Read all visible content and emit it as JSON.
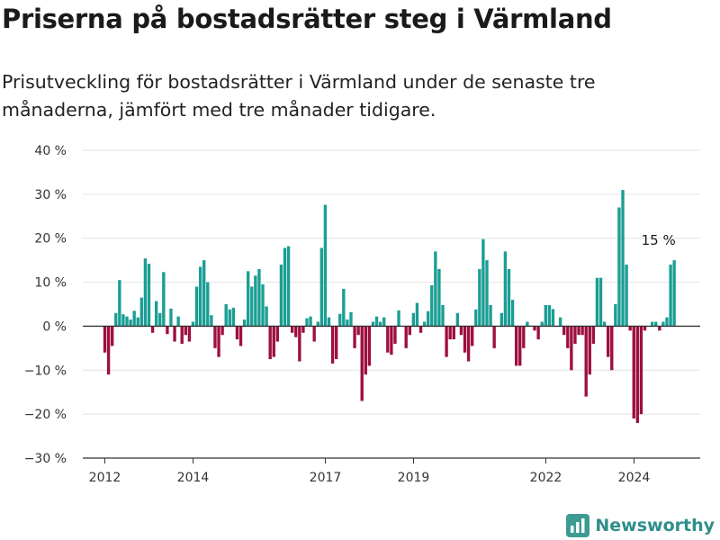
{
  "header": {
    "title": "Priserna på bostadsrätter steg i Värmland",
    "subtitle": "Prisutveckling för bostadsrätter i Värmland under de senaste tre månaderna, jämfört med tre månader tidigare."
  },
  "brand": {
    "name": "Newsworthy",
    "icon": "newsworthy-logo-icon"
  },
  "colors": {
    "positive": "#1a9e94",
    "negative": "#9e0e40",
    "grid": "#e2e2e2",
    "zero_line": "#333333"
  },
  "chart_data": {
    "type": "bar",
    "title": "",
    "xlabel": "",
    "ylabel": "",
    "ylim": [
      -30,
      40
    ],
    "yticks": [
      -30,
      -20,
      -10,
      0,
      10,
      20,
      30,
      40
    ],
    "ytick_labels": [
      "−30 %",
      "−20 %",
      "−10 %",
      "0 %",
      "10 %",
      "20 %",
      "30 %",
      "40 %"
    ],
    "xlim": [
      2011.5,
      2025.5
    ],
    "xticks": [
      2012,
      2014,
      2017,
      2019,
      2022,
      2024
    ],
    "xtick_labels": [
      "2012",
      "2014",
      "2017",
      "2019",
      "2022",
      "2024"
    ],
    "x_start_year": 2012.0,
    "x_step": 0.0833,
    "grid": true,
    "annotation": {
      "text": "15 %",
      "index": 150
    },
    "values": [
      -6,
      -11,
      -4.5,
      3,
      10.5,
      2.7,
      2.2,
      1.5,
      3.5,
      2,
      6.5,
      15.4,
      14.2,
      -1.5,
      5.7,
      3,
      12.3,
      -1.8,
      4,
      -3.5,
      2.2,
      -4,
      -2,
      -3.5,
      1,
      9,
      13.5,
      15,
      10,
      2.5,
      -5,
      -7,
      -2,
      5,
      3.8,
      4.2,
      -3,
      -4.5,
      1.5,
      12.5,
      9,
      11.5,
      13,
      9.5,
      4.5,
      -7.5,
      -7,
      -3.5,
      14,
      17.8,
      18.2,
      -1.5,
      -2.5,
      -8,
      -1.5,
      1.8,
      2.2,
      -3.5,
      1,
      17.8,
      27.6,
      2,
      -8.5,
      -7.5,
      2.8,
      8.5,
      1.5,
      3.2,
      -5,
      -2,
      -17,
      -11,
      -9,
      1,
      2.2,
      1,
      2,
      -6,
      -6.5,
      -4,
      3.6,
      0,
      -5,
      -2,
      3,
      5.3,
      -1.5,
      1,
      3.4,
      9.3,
      17,
      13,
      4.8,
      -7,
      -3,
      -3,
      3,
      -2,
      -6,
      -8,
      -4.5,
      3.8,
      13,
      19.8,
      15,
      4.8,
      -5,
      0,
      3,
      17,
      13,
      6,
      -9,
      -9,
      -5,
      1,
      0,
      -1,
      -3,
      1,
      4.8,
      4.8,
      3.9,
      0,
      2,
      -2,
      -5,
      -10,
      -4,
      -2,
      -2,
      -16,
      -11,
      -4,
      11,
      11,
      1,
      -7,
      -10,
      5,
      27,
      31,
      14,
      -1,
      -21,
      -22,
      -20,
      -1,
      0,
      1,
      1,
      -1,
      1,
      2,
      14,
      15
    ]
  }
}
